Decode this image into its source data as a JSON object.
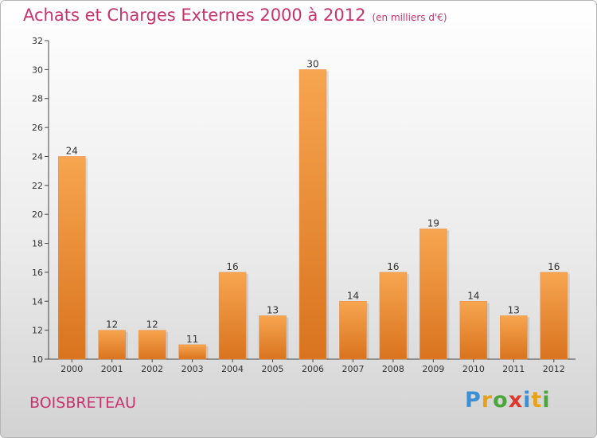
{
  "title": "Achats et Charges Externes 2000 à 2012",
  "subtitle": "(en milliers d'€)",
  "commune": "BOISBRETEAU",
  "brand": {
    "letters": [
      "P",
      "r",
      "o",
      "x",
      "i",
      "t",
      "i"
    ],
    "colors": [
      "#3b8fd6",
      "#e8a21a",
      "#4aa83a",
      "#d93a2f",
      "#3b8fd6",
      "#e8a21a",
      "#4aa83a"
    ]
  },
  "colors": {
    "bar_top": "#f7a550",
    "bar_bottom": "#d9731e",
    "title": "#c8336e"
  },
  "chart_data": {
    "type": "bar",
    "categories": [
      "2000",
      "2001",
      "2002",
      "2003",
      "2004",
      "2005",
      "2006",
      "2007",
      "2008",
      "2009",
      "2010",
      "2011",
      "2012"
    ],
    "values": [
      24,
      12,
      12,
      11,
      16,
      13,
      30,
      14,
      16,
      19,
      14,
      13,
      16
    ],
    "title": "Achats et Charges Externes 2000 à 2012",
    "ylim": [
      10,
      32
    ],
    "yticks": [
      10,
      12,
      14,
      16,
      18,
      20,
      22,
      24,
      26,
      28,
      30,
      32
    ],
    "grid": false
  }
}
